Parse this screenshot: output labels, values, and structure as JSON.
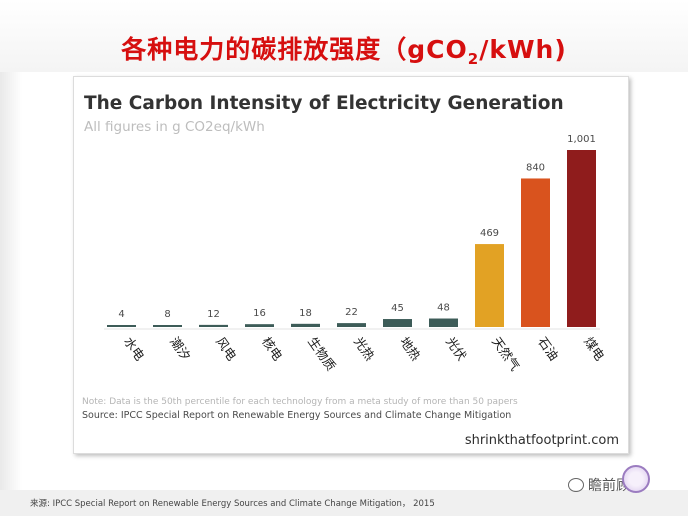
{
  "slide": {
    "title_main": "各种电力的碳排放强度（gCO",
    "title_sub": "2",
    "title_end": "/kWh)",
    "source_line": "来源: IPCC Special Report on Renewable Energy Sources and Climate Change Mitigation， 2015"
  },
  "watermark": {
    "text": "瞻前顾后",
    "icon": "wechat-icon"
  },
  "chart_data": {
    "type": "bar",
    "title": "The Carbon Intensity of Electricity Generation",
    "subtitle": "All figures in g CO2eq/kWh",
    "categories": [
      "水电",
      "潮汐",
      "风电",
      "核电",
      "生物质",
      "光热",
      "地热",
      "光伏",
      "天然气",
      "石油",
      "煤电"
    ],
    "values": [
      4,
      8,
      12,
      16,
      18,
      22,
      45,
      48,
      469,
      840,
      1001
    ],
    "value_labels": [
      "4",
      "8",
      "12",
      "16",
      "18",
      "22",
      "45",
      "48",
      "469",
      "840",
      "1,001"
    ],
    "bar_colors": [
      "#3d5c58",
      "#3d5c58",
      "#3d5c58",
      "#3d5c58",
      "#3d5c58",
      "#3d5c58",
      "#3d5c58",
      "#3d5c58",
      "#e2a224",
      "#d9531e",
      "#8f1c1c"
    ],
    "ylim": [
      0,
      1001
    ],
    "grid": false,
    "note": "Note: Data is the 50th percentile for each technology from a meta study of more than 50 papers",
    "source": "Source: IPCC Special Report on Renewable Energy Sources and Climate Change Mitigation",
    "website": "shrinkthatfootprint.com"
  }
}
